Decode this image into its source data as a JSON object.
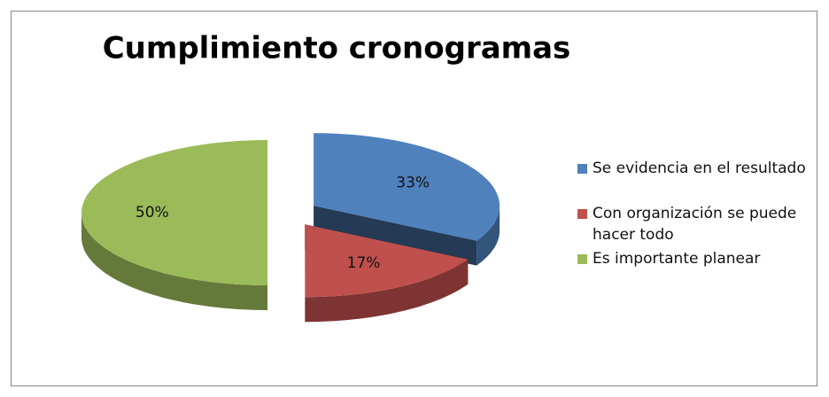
{
  "chart_data": {
    "type": "pie",
    "title": "Cumplimiento cronogramas",
    "categories": [
      "Se evidencia en el resultado",
      "Con organización se puede hacer todo",
      "Es importante planear"
    ],
    "values": [
      33,
      17,
      50
    ],
    "value_labels": [
      "33%",
      "17%",
      "50%"
    ],
    "colors": [
      "#4f81bd",
      "#c0504d",
      "#9bbb59"
    ],
    "legend": "right"
  }
}
